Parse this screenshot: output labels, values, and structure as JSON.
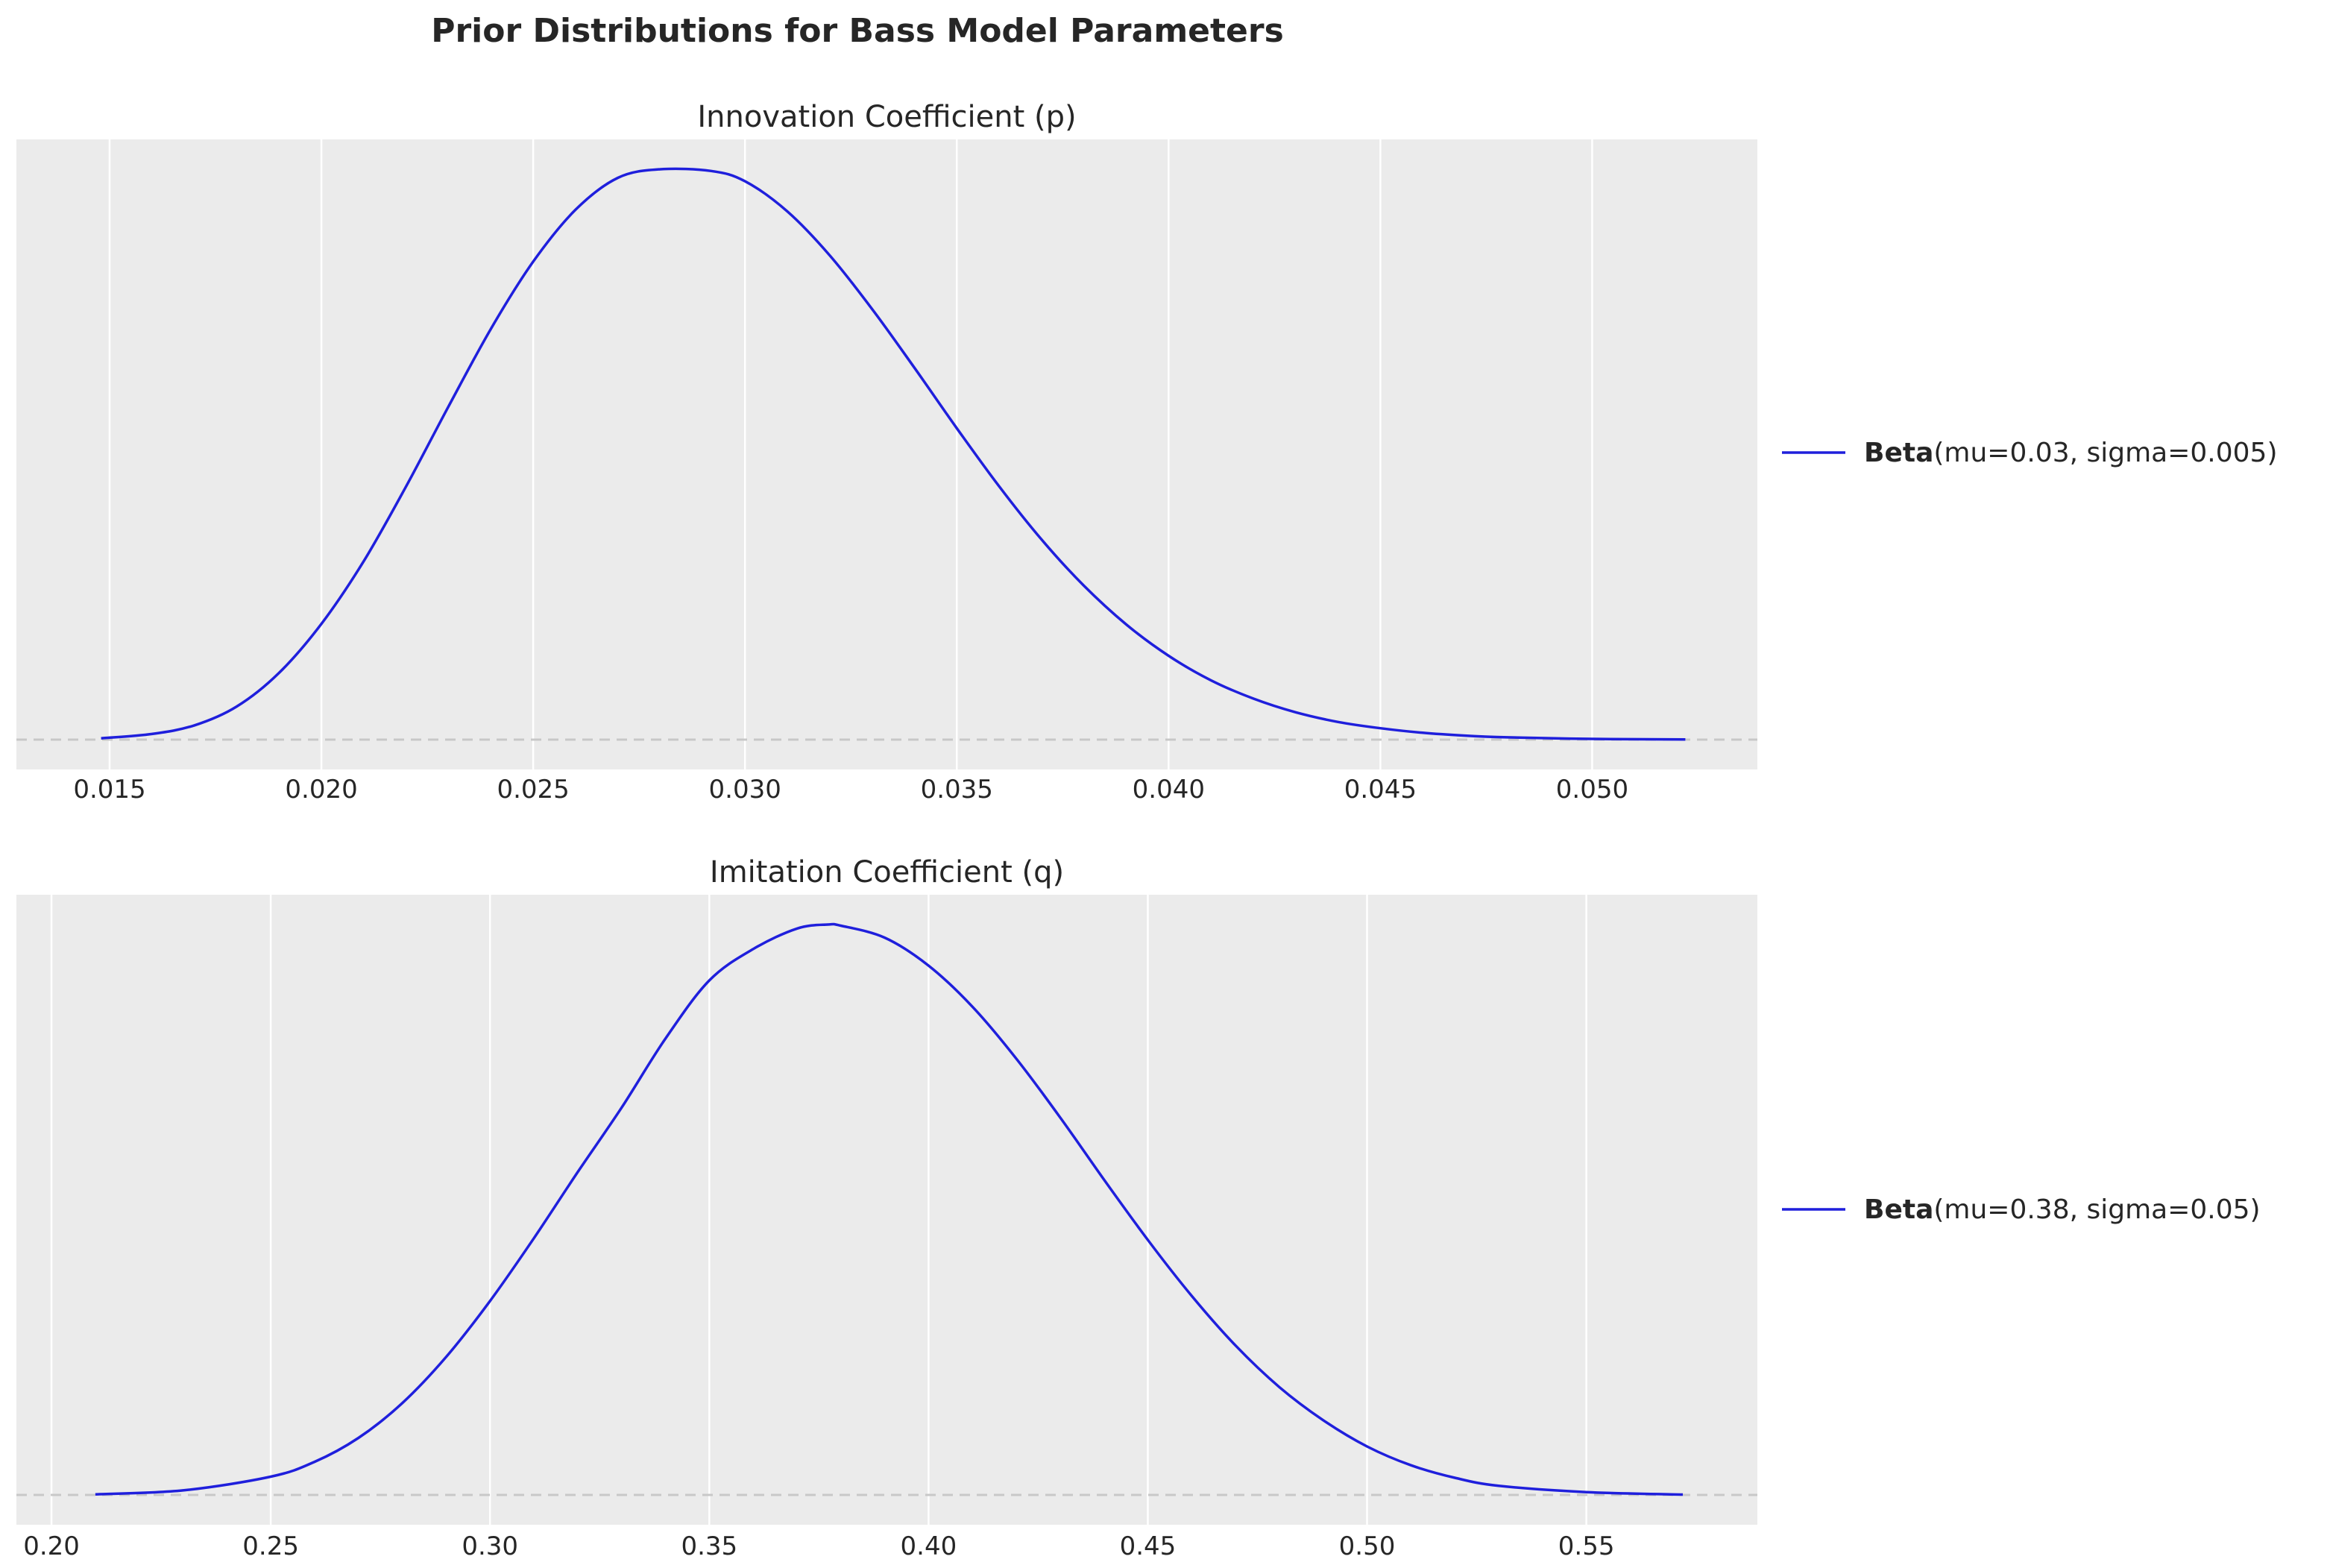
{
  "figure": {
    "title": "Prior Distributions for Bass Model Parameters"
  },
  "colors": {
    "axes_background": "#ebebeb",
    "grid": "#ffffff",
    "line": "#1f1fdc",
    "baseline": "#c8c8c8",
    "text": "#262626",
    "page_background": "#ffffff"
  },
  "chart_data": [
    {
      "type": "line",
      "title": "Innovation Coefficient (p)",
      "xlabel": "",
      "ylabel": "",
      "xlim": [
        0.0128,
        0.0539
      ],
      "x_ticks": [
        0.015,
        0.02,
        0.025,
        0.03,
        0.035,
        0.04,
        0.045,
        0.05
      ],
      "x_tick_labels": [
        "0.015",
        "0.020",
        "0.025",
        "0.030",
        "0.035",
        "0.040",
        "0.045",
        "0.050"
      ],
      "y_ticks_visible": false,
      "grid": "vertical",
      "legend_position": "right",
      "series": [
        {
          "name_bold": "Beta",
          "name_rest": "(mu=0.03, sigma=0.005)",
          "x": [
            0.0148,
            0.016,
            0.017,
            0.018,
            0.019,
            0.02,
            0.021,
            0.022,
            0.023,
            0.024,
            0.025,
            0.026,
            0.027,
            0.028,
            0.0292,
            0.03,
            0.031,
            0.032,
            0.033,
            0.034,
            0.035,
            0.036,
            0.037,
            0.038,
            0.039,
            0.04,
            0.041,
            0.042,
            0.043,
            0.044,
            0.045,
            0.046,
            0.047,
            0.048,
            0.05,
            0.0522
          ],
          "y": [
            0.0024,
            0.0099,
            0.025,
            0.058,
            0.117,
            0.203,
            0.313,
            0.444,
            0.584,
            0.72,
            0.838,
            0.929,
            0.985,
            1.0,
            0.997,
            0.979,
            0.926,
            0.849,
            0.755,
            0.652,
            0.546,
            0.444,
            0.351,
            0.27,
            0.202,
            0.147,
            0.104,
            0.072,
            0.048,
            0.031,
            0.02,
            0.012,
            0.007,
            0.004,
            0.0013,
            0.0002
          ]
        }
      ],
      "baseline_y": 0
    },
    {
      "type": "line",
      "title": "Imitation Coefficient (q)",
      "xlabel": "",
      "ylabel": "",
      "xlim": [
        0.192,
        0.589
      ],
      "x_ticks": [
        0.2,
        0.25,
        0.3,
        0.35,
        0.4,
        0.45,
        0.5,
        0.55
      ],
      "x_tick_labels": [
        "0.20",
        "0.25",
        "0.30",
        "0.35",
        "0.40",
        "0.45",
        "0.50",
        "0.55"
      ],
      "y_ticks_visible": false,
      "grid": "vertical",
      "legend_position": "right",
      "series": [
        {
          "name_bold": "Beta",
          "name_rest": "(mu=0.38, sigma=0.05)",
          "x": [
            0.21,
            0.23,
            0.25,
            0.26,
            0.27,
            0.28,
            0.29,
            0.3,
            0.31,
            0.32,
            0.33,
            0.34,
            0.35,
            0.36,
            0.37,
            0.377,
            0.38,
            0.39,
            0.4,
            0.41,
            0.42,
            0.43,
            0.44,
            0.45,
            0.46,
            0.47,
            0.48,
            0.49,
            0.5,
            0.51,
            0.52,
            0.53,
            0.55,
            0.572
          ],
          "y": [
            0.001,
            0.008,
            0.032,
            0.058,
            0.1,
            0.161,
            0.242,
            0.34,
            0.45,
            0.566,
            0.679,
            0.8,
            0.902,
            0.957,
            0.993,
            1.0,
            0.998,
            0.977,
            0.928,
            0.856,
            0.765,
            0.662,
            0.553,
            0.447,
            0.349,
            0.262,
            0.189,
            0.131,
            0.085,
            0.052,
            0.03,
            0.016,
            0.005,
            0.0006
          ]
        }
      ],
      "baseline_y": 0
    }
  ]
}
